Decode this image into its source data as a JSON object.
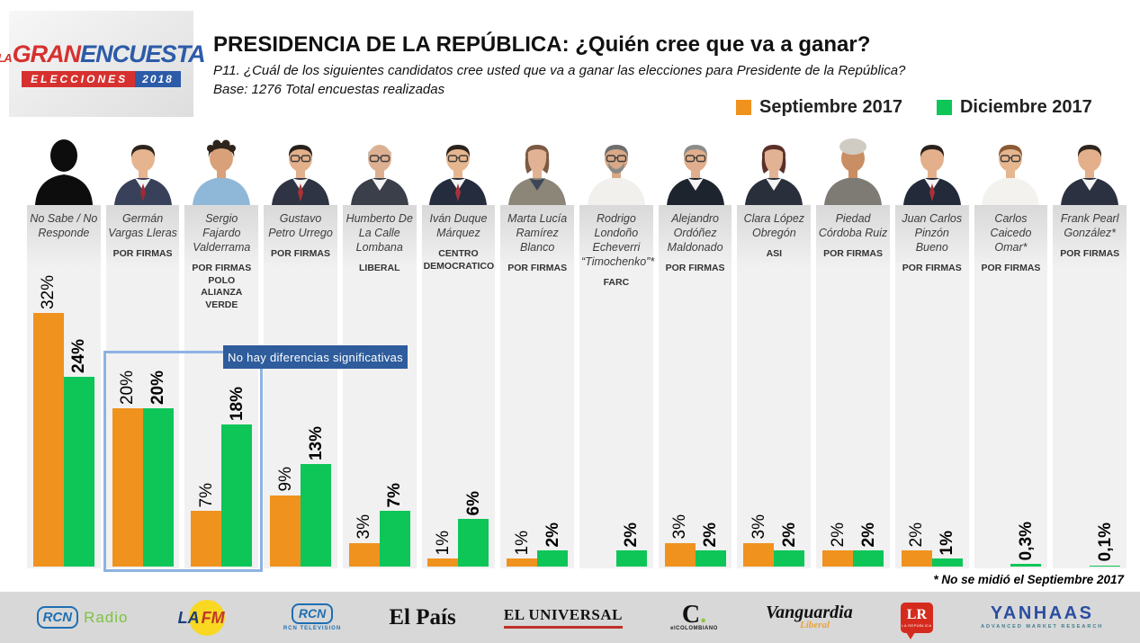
{
  "logo": {
    "la": "LA",
    "gran": "GRAN",
    "encuesta": "ENCUESTA",
    "elecciones": "ELECCIONES",
    "year": "2018"
  },
  "header": {
    "title": "PRESIDENCIA DE LA REPÚBLICA: ¿Quién cree que va a ganar?",
    "question": "P11. ¿Cuál de los siguientes candidatos cree usted que va a ganar las elecciones para Presidente de la República?",
    "base": "Base: 1276 Total encuestas realizadas"
  },
  "legend": [
    {
      "label": "Septiembre 2017",
      "color": "#F0921E"
    },
    {
      "label": "Diciembre 2017",
      "color": "#0EC558"
    }
  ],
  "annotation": {
    "text": "No hay diferencias significativas",
    "box_color": "#2E5C9C",
    "outline_color": "#8DB3E2"
  },
  "footnote": "* No se midió el Septiembre 2017",
  "chart_data": {
    "type": "bar",
    "title": "PRESIDENCIA DE LA REPÚBLICA: ¿Quién cree que va a ganar?",
    "categories": [
      "No Sabe / No Responde",
      "Germán Vargas Lleras",
      "Sergio Fajardo Valderrama",
      "Gustavo Petro Urrego",
      "Humberto De La Calle Lombana",
      "Iván Duque Márquez",
      "Marta Lucía Ramírez Blanco",
      "Rodrigo Londoño Echeverri “Timochenko”*",
      "Alejandro Ordóñez Maldonado",
      "Clara López Obregón",
      "Piedad Córdoba Ruiz",
      "Juan Carlos Pinzón Bueno",
      "Carlos Caicedo Omar*",
      "Frank Pearl González*"
    ],
    "series": [
      {
        "name": "Septiembre 2017",
        "color": "#F0921E",
        "values": [
          32,
          20,
          7,
          9,
          3,
          1,
          1,
          null,
          3,
          3,
          2,
          2,
          null,
          null
        ]
      },
      {
        "name": "Diciembre 2017",
        "color": "#0EC558",
        "values": [
          24,
          20,
          18,
          13,
          7,
          6,
          2,
          2,
          2,
          2,
          2,
          1,
          0.3,
          0.1
        ]
      }
    ],
    "value_suffix": "%",
    "ylim": [
      0,
      32
    ],
    "grid": false,
    "legend_position": "top-right",
    "annotation": "No hay diferencias significativas (recuadro sobre Germán Vargas Lleras y Sergio Fajardo Valderrama)"
  },
  "candidates": [
    {
      "name": "No Sabe / No Responde",
      "party": "",
      "sept_label": "32%",
      "dec_label": "24%",
      "avatar": {
        "sil": true
      }
    },
    {
      "name": "Germán Vargas Lleras",
      "party": "POR FIRMAS",
      "sept_label": "20%",
      "dec_label": "20%",
      "avatar": {
        "skin": "#E6B48E",
        "hair": "#2E241E",
        "torso": "#39415A",
        "shirt": "#F4F4F4",
        "tie": "#9E2B33"
      }
    },
    {
      "name": "Sergio Fajardo Valderrama",
      "party": "POR FIRMAS\nPOLO\nALIANZA VERDE",
      "sept_label": "7%",
      "dec_label": "18%",
      "avatar": {
        "skin": "#D9A179",
        "hair": "#2E241E",
        "torso": "#8FB8D8",
        "curly": true
      }
    },
    {
      "name": "Gustavo Petro Urrego",
      "party": "POR FIRMAS",
      "sept_label": "9%",
      "dec_label": "13%",
      "avatar": {
        "skin": "#E3B08B",
        "hair": "#27211C",
        "torso": "#2E3443",
        "shirt": "#F4F4F4",
        "tie": "#B03038",
        "glasses": true
      }
    },
    {
      "name": "Humberto De La Calle Lombana",
      "party": "LIBERAL",
      "sept_label": "3%",
      "dec_label": "7%",
      "avatar": {
        "skin": "#DDB091",
        "hair": "#C9C4BC",
        "bald": true,
        "torso": "#3A3F4A",
        "shirt": "#F4F4F4",
        "glasses": true
      }
    },
    {
      "name": "Iván Duque Márquez",
      "party": "CENTRO\nDEMOCRATICO",
      "sept_label": "1%",
      "dec_label": "6%",
      "avatar": {
        "skin": "#E5B68F",
        "hair": "#2A221C",
        "torso": "#252C3E",
        "shirt": "#F4F4F4",
        "tie": "#A8323C",
        "glasses": true
      }
    },
    {
      "name": "Marta Lucía Ramírez Blanco",
      "party": "POR FIRMAS",
      "sept_label": "1%",
      "dec_label": "2%",
      "avatar": {
        "skin": "#E2B294",
        "hair": "#7A5A43",
        "torso": "#8C8678",
        "shirt": "#3D4757",
        "long": true
      }
    },
    {
      "name": "Rodrigo Londoño Echeverri “Timochenko”*",
      "party": "FARC",
      "sept_label": null,
      "dec_label": "2%",
      "avatar": {
        "skin": "#D8A887",
        "hair": "#6E6E6E",
        "torso": "#F2F0EC",
        "beard": "#8A8A85",
        "glasses": true
      }
    },
    {
      "name": "Alejandro Ordóñez Maldonado",
      "party": "POR FIRMAS",
      "sept_label": "3%",
      "dec_label": "2%",
      "avatar": {
        "skin": "#E0AE8C",
        "hair": "#8C8C8C",
        "torso": "#1E242E",
        "shirt": "#F4F4F4",
        "glasses": true
      }
    },
    {
      "name": "Clara López Obregón",
      "party": "ASI",
      "sept_label": "3%",
      "dec_label": "2%",
      "avatar": {
        "skin": "#E2B294",
        "hair": "#5A3028",
        "torso": "#2A2F3C",
        "shirt": "#F4F4F4",
        "long": true
      }
    },
    {
      "name": "Piedad Córdoba Ruiz",
      "party": "POR FIRMAS",
      "sept_label": "2%",
      "dec_label": "2%",
      "avatar": {
        "skin": "#C98E63",
        "hair": "#D0CCC4",
        "turban": true,
        "torso": "#7E7A74"
      }
    },
    {
      "name": "Juan Carlos Pinzón Bueno",
      "party": "POR FIRMAS",
      "sept_label": "2%",
      "dec_label": "1%",
      "avatar": {
        "skin": "#E3B08B",
        "hair": "#2A221C",
        "torso": "#232A3A",
        "shirt": "#F4F4F4",
        "tie": "#A83038"
      }
    },
    {
      "name": "Carlos Caicedo Omar*",
      "party": "POR FIRMAS",
      "sept_label": null,
      "dec_label": "0,3%",
      "avatar": {
        "skin": "#E6B68E",
        "hair": "#8A5A35",
        "torso": "#F4F2EE",
        "glasses": true
      }
    },
    {
      "name": "Frank Pearl González*",
      "party": "POR FIRMAS",
      "sept_label": null,
      "dec_label": "0,1%",
      "avatar": {
        "skin": "#E3B08B",
        "hair": "#2F2620",
        "torso": "#2B3140",
        "shirt": "#F4F4F4"
      }
    }
  ],
  "footer": {
    "logos": [
      {
        "name": "RCN Radio",
        "mark": "RCN",
        "text": "Radio"
      },
      {
        "name": "LA FM",
        "la": "LA",
        "fm": "FM"
      },
      {
        "name": "RCN Televisión",
        "mark": "RCN",
        "text": "RCN TELEVISION"
      },
      {
        "name": "El País",
        "text": "El País"
      },
      {
        "name": "El Universal",
        "text": "EL UNIVERSAL"
      },
      {
        "name": "El Colombiano",
        "c": "C",
        "dot": ".",
        "text": "elCOLOMBIANO"
      },
      {
        "name": "Vanguardia Liberal",
        "text": "Vanguardia",
        "sub": "Liberal"
      },
      {
        "name": "La República",
        "mark": "LR",
        "sub": "LA REPÚBLICA"
      },
      {
        "name": "Yanhaas",
        "text": "YANHAAS",
        "sub": "ADVANCED MARKET RESEARCH"
      }
    ]
  }
}
